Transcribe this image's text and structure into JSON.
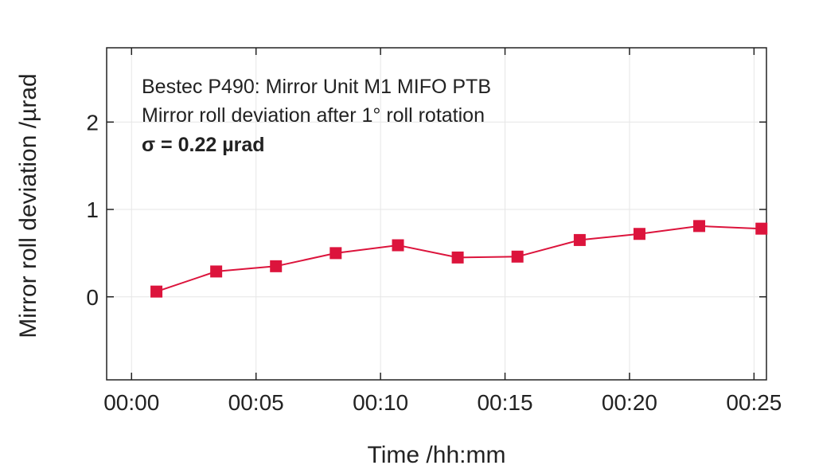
{
  "chart_data": {
    "type": "line",
    "title": "",
    "xlabel": "Time /hh:mm",
    "ylabel": "Mirror roll deviation /µrad",
    "x_tick_labels": [
      "00:00",
      "00:05",
      "00:10",
      "00:15",
      "00:20",
      "00:25"
    ],
    "x_tick_values": [
      0,
      5,
      10,
      15,
      20,
      25
    ],
    "y_tick_labels": [
      "0",
      "1",
      "2"
    ],
    "y_tick_values": [
      0,
      1,
      2
    ],
    "xlim": [
      -1,
      25.5
    ],
    "ylim": [
      -0.95,
      2.85
    ],
    "grid": true,
    "marker": "square",
    "color": "#dc143c",
    "annotations": [
      "Bestec P490: Mirror Unit M1 MIFO PTB",
      "Mirror roll deviation after 1° roll rotation",
      "σ = 0.22 µrad"
    ],
    "series": [
      {
        "x": [
          "00:01",
          "00:03",
          "00:06",
          "00:08",
          "00:11",
          "00:13",
          "00:16",
          "00:18",
          "00:20",
          "00:23",
          "00:25"
        ],
        "x_minutes": [
          1.0,
          3.4,
          5.8,
          8.2,
          10.7,
          13.1,
          15.5,
          18.0,
          20.4,
          22.8,
          25.3
        ],
        "values": [
          0.06,
          0.29,
          0.35,
          0.5,
          0.59,
          0.45,
          0.46,
          0.65,
          0.72,
          0.81,
          0.78
        ]
      }
    ]
  }
}
